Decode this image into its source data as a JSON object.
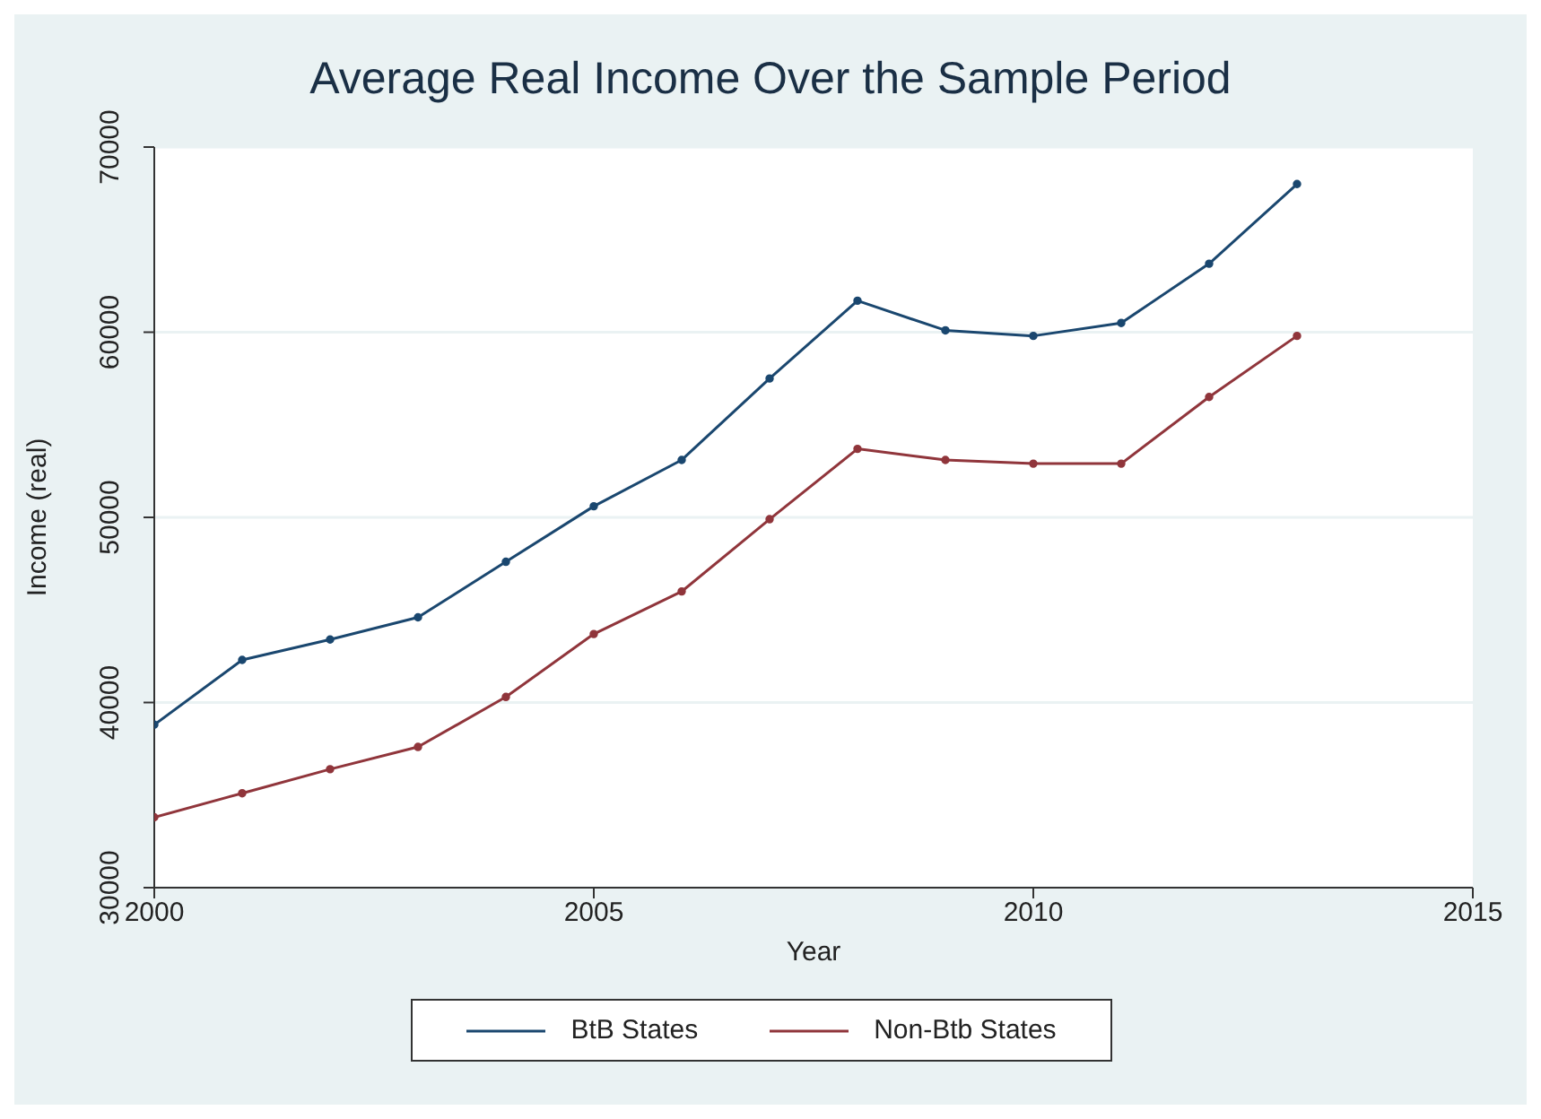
{
  "chart_data": {
    "type": "line",
    "title": "Average Real Income Over the Sample Period",
    "xlabel": "Year",
    "ylabel": "Income (real)",
    "x": [
      2000,
      2001,
      2002,
      2003,
      2004,
      2005,
      2006,
      2007,
      2008,
      2009,
      2010,
      2011,
      2012,
      2013
    ],
    "series": [
      {
        "name": "BtB States",
        "color": "#1a476f",
        "values": [
          38800,
          42300,
          43400,
          44600,
          47600,
          50600,
          53100,
          57500,
          61700,
          60100,
          59800,
          60500,
          63700,
          68000
        ]
      },
      {
        "name": "Non-Btb States",
        "color": "#90353b",
        "values": [
          33800,
          35100,
          36400,
          37600,
          40300,
          43700,
          46000,
          49900,
          53700,
          53100,
          52900,
          52900,
          56500,
          59800
        ]
      }
    ],
    "xlim": [
      2000,
      2015
    ],
    "xticks": [
      2000,
      2005,
      2010,
      2015
    ],
    "ylim": [
      30000,
      70000
    ],
    "yticks": [
      30000,
      40000,
      50000,
      60000,
      70000
    ],
    "grid": "y",
    "legend": "bottom",
    "marker": "circle",
    "line_style": "solid"
  }
}
